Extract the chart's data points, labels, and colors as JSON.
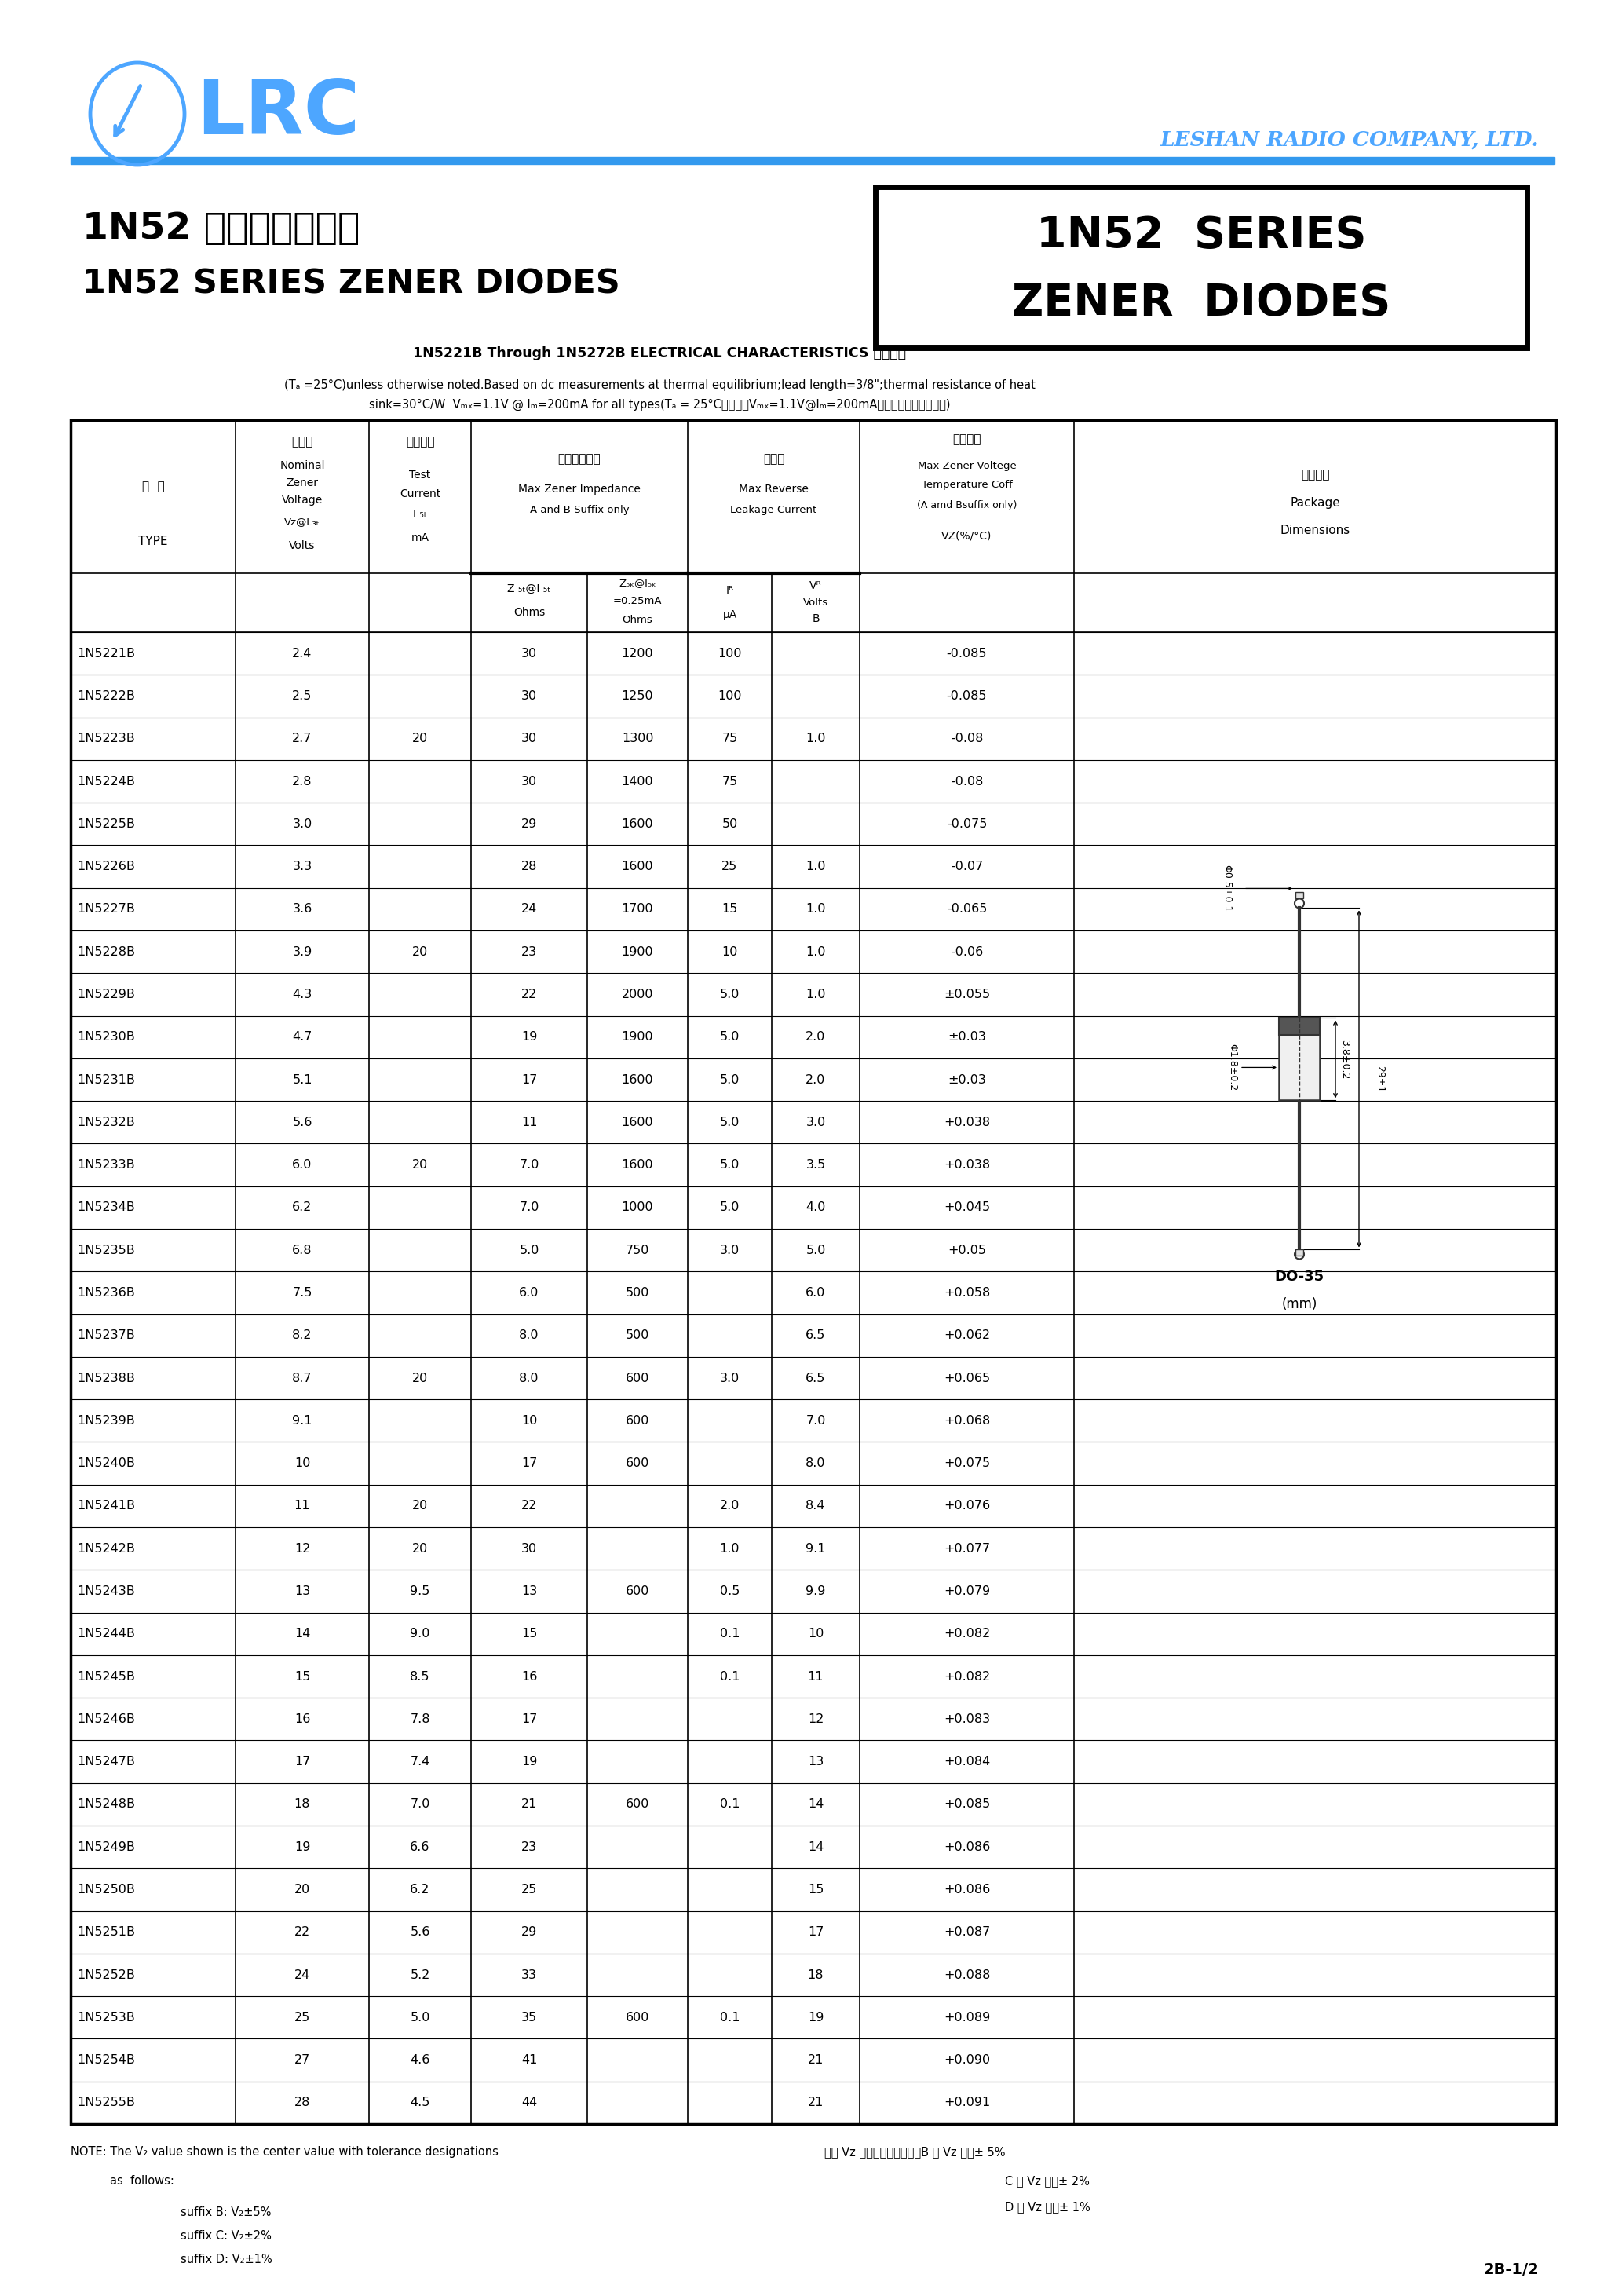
{
  "page_bg": "#ffffff",
  "logo_color": "#4da6ff",
  "company_name": "LESHAN RADIO COMPANY, LTD.",
  "title_box_text1": "1N52  SERIES",
  "title_box_text2": "ZENER  DIODES",
  "chinese_title": "1N52 系列稳压二极管",
  "english_title": "1N52 SERIES ZENER DIODES",
  "char_title": "1N5221B Through 1N5272B ELECTRICAL CHARACTERISTICS 电性参数",
  "char_note1": "(Tₐ =25°C)unless otherwise noted.Based on dc measurements at thermal equilibrium;lead length=3/8\";thermal resistance of heat",
  "char_note2": "sink=30°C/W  Vₘₓ=1.1V @ Iₘ=200mA for all types(Tₐ = 25°C所有型号Vₘₓ=1.1V@Iₘ=200mA，其它特别说明除外。)",
  "table_data": [
    [
      "1N5221B",
      "2.4",
      "",
      "30",
      "1200",
      "100",
      "",
      "-0.085"
    ],
    [
      "1N5222B",
      "2.5",
      "",
      "30",
      "1250",
      "100",
      "",
      "-0.085"
    ],
    [
      "1N5223B",
      "2.7",
      "20",
      "30",
      "1300",
      "75",
      "1.0",
      "-0.08"
    ],
    [
      "1N5224B",
      "2.8",
      "",
      "30",
      "1400",
      "75",
      "",
      "-0.08"
    ],
    [
      "1N5225B",
      "3.0",
      "",
      "29",
      "1600",
      "50",
      "",
      "-0.075"
    ],
    [
      "1N5226B",
      "3.3",
      "",
      "28",
      "1600",
      "25",
      "1.0",
      "-0.07"
    ],
    [
      "1N5227B",
      "3.6",
      "",
      "24",
      "1700",
      "15",
      "1.0",
      "-0.065"
    ],
    [
      "1N5228B",
      "3.9",
      "20",
      "23",
      "1900",
      "10",
      "1.0",
      "-0.06"
    ],
    [
      "1N5229B",
      "4.3",
      "",
      "22",
      "2000",
      "5.0",
      "1.0",
      "±0.055"
    ],
    [
      "1N5230B",
      "4.7",
      "",
      "19",
      "1900",
      "5.0",
      "2.0",
      "±0.03"
    ],
    [
      "1N5231B",
      "5.1",
      "",
      "17",
      "1600",
      "5.0",
      "2.0",
      "±0.03"
    ],
    [
      "1N5232B",
      "5.6",
      "",
      "11",
      "1600",
      "5.0",
      "3.0",
      "+0.038"
    ],
    [
      "1N5233B",
      "6.0",
      "20",
      "7.0",
      "1600",
      "5.0",
      "3.5",
      "+0.038"
    ],
    [
      "1N5234B",
      "6.2",
      "",
      "7.0",
      "1000",
      "5.0",
      "4.0",
      "+0.045"
    ],
    [
      "1N5235B",
      "6.8",
      "",
      "5.0",
      "750",
      "3.0",
      "5.0",
      "+0.05"
    ],
    [
      "1N5236B",
      "7.5",
      "",
      "6.0",
      "500",
      "",
      "6.0",
      "+0.058"
    ],
    [
      "1N5237B",
      "8.2",
      "",
      "8.0",
      "500",
      "",
      "6.5",
      "+0.062"
    ],
    [
      "1N5238B",
      "8.7",
      "20",
      "8.0",
      "600",
      "3.0",
      "6.5",
      "+0.065"
    ],
    [
      "1N5239B",
      "9.1",
      "",
      "10",
      "600",
      "",
      "7.0",
      "+0.068"
    ],
    [
      "1N5240B",
      "10",
      "",
      "17",
      "600",
      "",
      "8.0",
      "+0.075"
    ],
    [
      "1N5241B",
      "11",
      "20",
      "22",
      "",
      "2.0",
      "8.4",
      "+0.076"
    ],
    [
      "1N5242B",
      "12",
      "20",
      "30",
      "",
      "1.0",
      "9.1",
      "+0.077"
    ],
    [
      "1N5243B",
      "13",
      "9.5",
      "13",
      "600",
      "0.5",
      "9.9",
      "+0.079"
    ],
    [
      "1N5244B",
      "14",
      "9.0",
      "15",
      "",
      "0.1",
      "10",
      "+0.082"
    ],
    [
      "1N5245B",
      "15",
      "8.5",
      "16",
      "",
      "0.1",
      "11",
      "+0.082"
    ],
    [
      "1N5246B",
      "16",
      "7.8",
      "17",
      "",
      "",
      "12",
      "+0.083"
    ],
    [
      "1N5247B",
      "17",
      "7.4",
      "19",
      "",
      "",
      "13",
      "+0.084"
    ],
    [
      "1N5248B",
      "18",
      "7.0",
      "21",
      "600",
      "0.1",
      "14",
      "+0.085"
    ],
    [
      "1N5249B",
      "19",
      "6.6",
      "23",
      "",
      "",
      "14",
      "+0.086"
    ],
    [
      "1N5250B",
      "20",
      "6.2",
      "25",
      "",
      "",
      "15",
      "+0.086"
    ],
    [
      "1N5251B",
      "22",
      "5.6",
      "29",
      "",
      "",
      "17",
      "+0.087"
    ],
    [
      "1N5252B",
      "24",
      "5.2",
      "33",
      "",
      "",
      "18",
      "+0.088"
    ],
    [
      "1N5253B",
      "25",
      "5.0",
      "35",
      "600",
      "0.1",
      "19",
      "+0.089"
    ],
    [
      "1N5254B",
      "27",
      "4.6",
      "41",
      "",
      "",
      "21",
      "+0.090"
    ],
    [
      "1N5255B",
      "28",
      "4.5",
      "44",
      "",
      "",
      "21",
      "+0.091"
    ]
  ],
  "page_number": "2B-1/2"
}
